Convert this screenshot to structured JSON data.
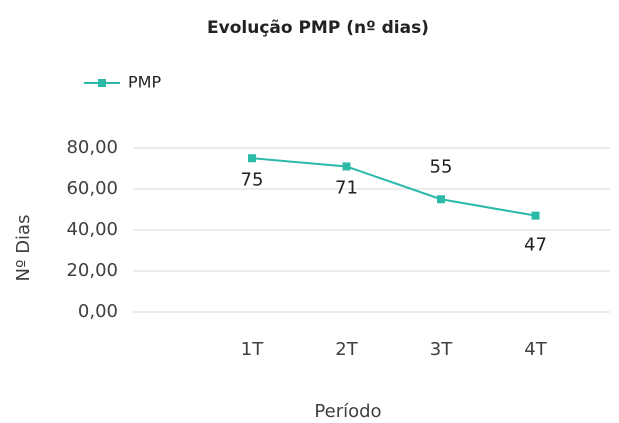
{
  "chart_data": {
    "type": "line",
    "title": "Evolução PMP (nº dias)",
    "categories": [
      "1T",
      "2T",
      "3T",
      "4T"
    ],
    "series": [
      {
        "name": "PMP",
        "color": "#2bb9a9",
        "values": [
          75,
          71,
          55,
          47
        ]
      }
    ],
    "ylim": [
      0,
      80
    ],
    "yticks": [
      {
        "value": 0,
        "label": "0,00"
      },
      {
        "value": 20,
        "label": "20,00"
      },
      {
        "value": 40,
        "label": "40,00"
      },
      {
        "value": 60,
        "label": "60,00"
      },
      {
        "value": 80,
        "label": "80,00"
      }
    ],
    "ylabel": "Nº Dias",
    "xlabel": "Período",
    "grid": true,
    "legend": "top-left"
  }
}
